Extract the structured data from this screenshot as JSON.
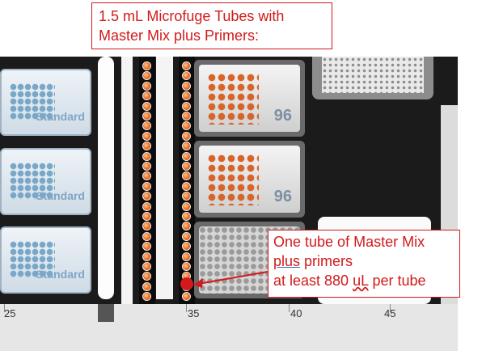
{
  "callout_top": {
    "line1": "1.5 mL Microfuge Tubes with",
    "line2": "Master Mix plus Primers:"
  },
  "callout_bottom": {
    "line1": " One tube of Master Mix",
    "line2_word": "plus",
    "line2_rest": " primers",
    "line3_pre": "at least 880 ",
    "line3_unit": "uL",
    "line3_post": " per tube"
  },
  "standard_plates": [
    "Standard",
    "Standard",
    "Standard"
  ],
  "pcr_plates": [
    "96",
    "96"
  ],
  "ruler": [
    "25",
    "35",
    "40",
    "45"
  ],
  "colors": {
    "annotation_red": "#d21a1a",
    "tube_orange": "#f4772a",
    "plate_blue": "#7fa6c6"
  }
}
